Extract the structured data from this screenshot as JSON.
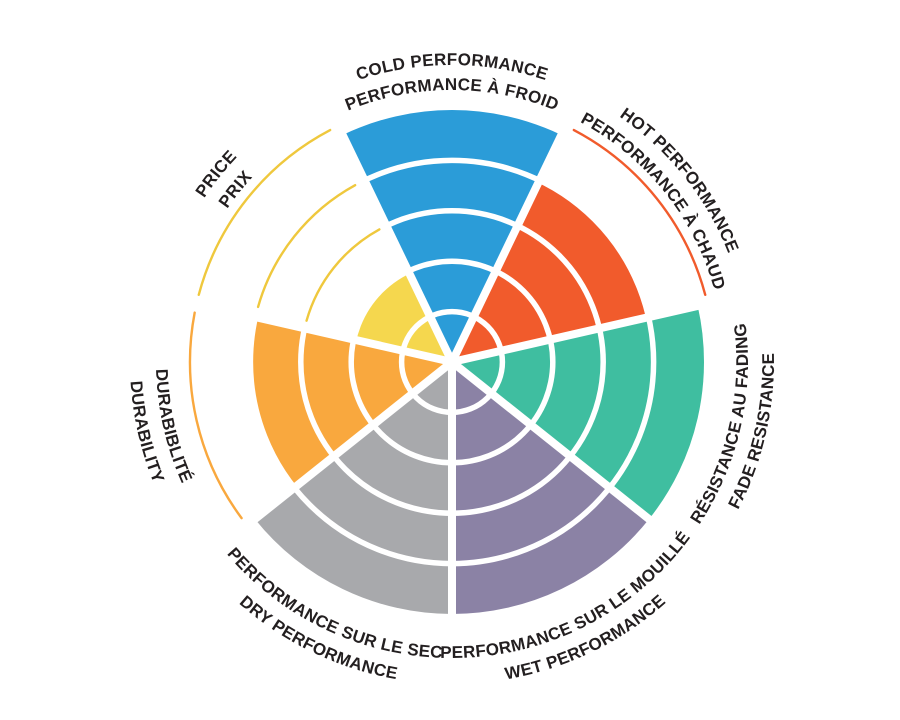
{
  "chart_data": {
    "type": "bar",
    "variant": "polar-wheel-radial-rating",
    "title": "",
    "rings_total": 5,
    "start_category_angle_deg": 0,
    "background_color": "#FFFFFF",
    "separator_color": "#FFFFFF",
    "label_text_color": "#231F20",
    "legend": "none",
    "categories": [
      "COLD PERFORMANCE",
      "HOT PERFORMANCE",
      "FADE RESISTANCE",
      "WET PERFORMANCE",
      "DRY PERFORMANCE",
      "DURABILITY",
      "PRICE"
    ],
    "values": [
      5,
      4,
      5,
      5,
      5,
      4,
      2
    ],
    "segments": [
      {
        "id": "cold-performance",
        "lines": [
          "COLD PERFORMANCE",
          "PERFORMANCE À FROID"
        ],
        "value": 5,
        "color": "#2B9CD8",
        "arc_color": "#2B9CD8",
        "label_orientation": "top"
      },
      {
        "id": "hot-performance",
        "lines": [
          "HOT PERFORMANCE",
          "PERFORMANCE À CHAUD"
        ],
        "value": 4,
        "color": "#F15B2C",
        "arc_color": "#F15B2C",
        "label_orientation": "top"
      },
      {
        "id": "fade-resistance",
        "lines": [
          "RÉSISTANCE AU FADING",
          "FADE RESISTANCE"
        ],
        "value": 5,
        "color": "#3FBEA0",
        "arc_color": "#3FBEA0",
        "label_orientation": "flipped"
      },
      {
        "id": "wet-performance",
        "lines": [
          "PERFORMANCE SUR LE MOUILLÉ",
          "WET PERFORMANCE"
        ],
        "value": 5,
        "color": "#8B82A5",
        "arc_color": "#8B82A5",
        "label_orientation": "flipped"
      },
      {
        "id": "dry-performance",
        "lines": [
          "PERFORMANCE SUR LE SEC",
          "DRY PERFORMANCE"
        ],
        "value": 5,
        "color": "#A8A9AC",
        "arc_color": "#A8A9AC",
        "label_orientation": "flipped"
      },
      {
        "id": "durability",
        "lines": [
          "DURABIBLITÉ",
          "DURABILITY"
        ],
        "value": 4,
        "color": "#F9A83E",
        "arc_color": "#F9A83E",
        "label_orientation": "flipped"
      },
      {
        "id": "price",
        "lines": [
          "PRICE",
          "PRIX"
        ],
        "value": 2,
        "color": "#F5D74E",
        "arc_color": "#EFC83D",
        "label_orientation": "top"
      }
    ]
  }
}
